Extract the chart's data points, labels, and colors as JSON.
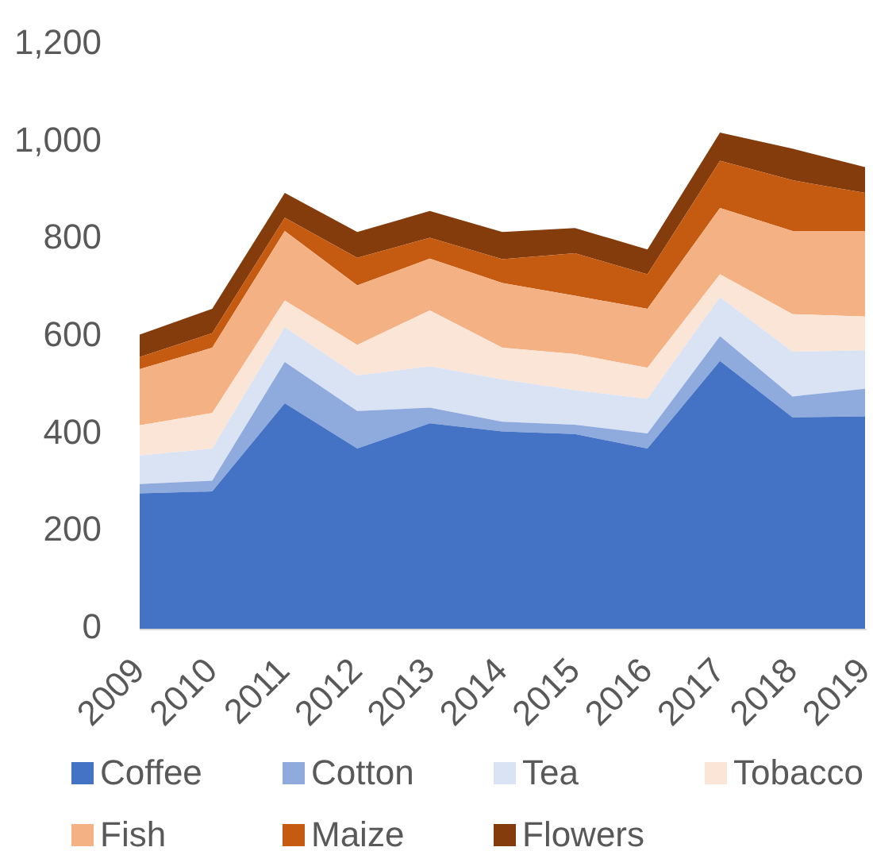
{
  "chart_data": {
    "type": "area",
    "stacked": true,
    "categories": [
      "2009",
      "2010",
      "2011",
      "2012",
      "2013",
      "2014",
      "2015",
      "2016",
      "2017",
      "2018",
      "2019"
    ],
    "series": [
      {
        "name": "Coffee",
        "color": "#4472c4",
        "values": [
          278,
          282,
          463,
          370,
          422,
          405,
          400,
          370,
          550,
          434,
          436
        ]
      },
      {
        "name": "Cotton",
        "color": "#8faadc",
        "values": [
          19,
          22,
          85,
          77,
          32,
          20,
          19,
          31,
          51,
          43,
          57
        ]
      },
      {
        "name": "Tea",
        "color": "#dae3f3",
        "values": [
          59,
          66,
          71,
          73,
          85,
          87,
          71,
          71,
          80,
          92,
          79
        ]
      },
      {
        "name": "Tobacco",
        "color": "#fbe5d6",
        "values": [
          62,
          73,
          55,
          63,
          115,
          65,
          74,
          64,
          47,
          77,
          69
        ]
      },
      {
        "name": "Fish",
        "color": "#f4b183",
        "values": [
          115,
          134,
          143,
          122,
          106,
          133,
          120,
          121,
          136,
          171,
          176
        ]
      },
      {
        "name": "Maize",
        "color": "#c55a11",
        "values": [
          25,
          30,
          27,
          57,
          43,
          49,
          87,
          71,
          97,
          104,
          78
        ]
      },
      {
        "name": "Flowers",
        "color": "#843c0c",
        "values": [
          46,
          50,
          51,
          53,
          55,
          56,
          52,
          51,
          58,
          65,
          53
        ]
      }
    ],
    "ylim": [
      0,
      1200
    ],
    "yticks": [
      0,
      200,
      400,
      600,
      800,
      {
        "value": 1000,
        "label": "1,000"
      },
      {
        "value": 1200,
        "label": "1,200"
      }
    ],
    "legend": "bottom"
  }
}
